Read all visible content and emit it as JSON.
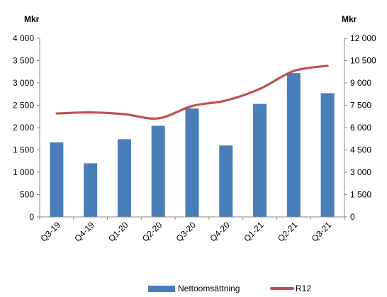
{
  "chart_data": {
    "type": "bar",
    "categories": [
      "Q3-19",
      "Q4-19",
      "Q1-20",
      "Q2-20",
      "Q3-20",
      "Q4-20",
      "Q1-21",
      "Q2-21",
      "Q3-21"
    ],
    "series": [
      {
        "name": "Nettoomsättning",
        "type": "bar",
        "axis": "left",
        "color": "#4a7ebb",
        "values": [
          1670,
          1200,
          1740,
          2040,
          2430,
          1600,
          2530,
          3220,
          2770
        ]
      },
      {
        "name": "R12",
        "type": "line",
        "axis": "right",
        "color": "#c0504d",
        "values": [
          6950,
          7020,
          6900,
          6620,
          7450,
          7820,
          8600,
          9800,
          10150
        ]
      }
    ],
    "y_left": {
      "label": "Mkr",
      "min": 0,
      "max": 4000,
      "step": 500,
      "ticks": [
        "0",
        "500",
        "1 000",
        "1 500",
        "2 000",
        "2 500",
        "3 000",
        "3 500",
        "4 000"
      ]
    },
    "y_right": {
      "label": "Mkr",
      "min": 0,
      "max": 12000,
      "step": 1500,
      "ticks": [
        "0",
        "1 500",
        "3 000",
        "4 500",
        "6 000",
        "7 500",
        "9 000",
        "10 500",
        "12 000"
      ]
    },
    "grid": false,
    "legend": "bottom"
  }
}
